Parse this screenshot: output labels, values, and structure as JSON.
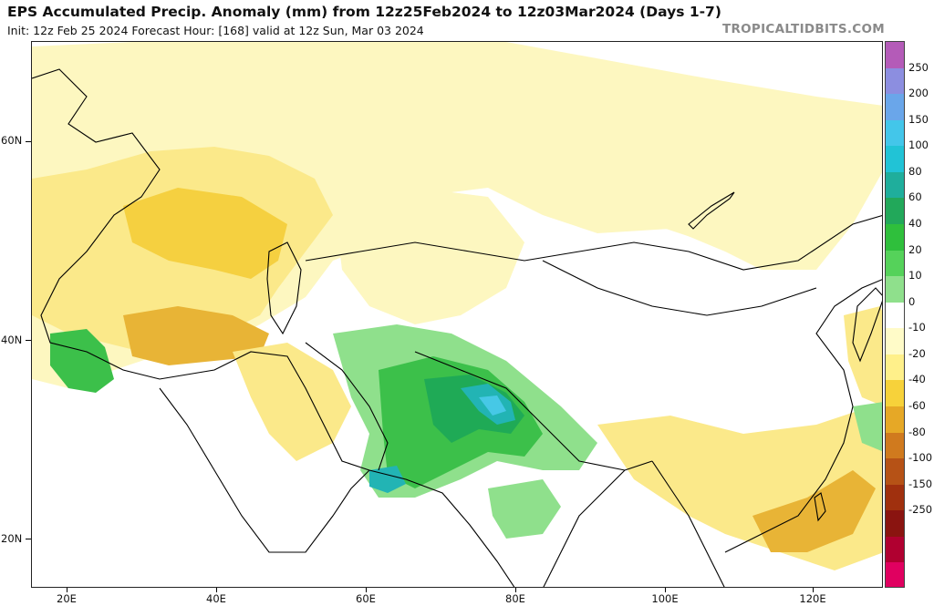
{
  "title": "EPS Accumulated Precip. Anomaly (mm) from 12z25Feb2024 to 12z03Mar2024 (Days 1-7)",
  "subtitle": "Init: 12z Feb 25 2024   Forecast Hour: [168]   valid at 12z Sun, Mar 03 2024",
  "brand": "TROPICALTIDBITS.COM",
  "lat_labels": [
    "60N",
    "40N",
    "20N"
  ],
  "lon_labels": [
    "20E",
    "40E",
    "60E",
    "80E",
    "100E",
    "120E"
  ],
  "colorbar": {
    "labels": [
      "250",
      "200",
      "150",
      "100",
      "80",
      "60",
      "40",
      "20",
      "10",
      "0",
      "-10",
      "-20",
      "-40",
      "-60",
      "-80",
      "-100",
      "-150",
      "-250"
    ],
    "colors": [
      "#b45bb8",
      "#8c8ee0",
      "#6aa6ea",
      "#43c6ea",
      "#21c3d6",
      "#1fae9c",
      "#22a85a",
      "#2fbf3c",
      "#55d25a",
      "#8fe08c",
      "#ffffff",
      "#fffbc8",
      "#fff08a",
      "#f7d23a",
      "#e6a826",
      "#d07a1e",
      "#b65216",
      "#a0300e",
      "#8a1410",
      "#b00030",
      "#e00060"
    ]
  },
  "map_colors": {
    "dry_light": "#fdf7c0",
    "dry_mid": "#fbe98a",
    "dry_strong": "#f5d040",
    "dry_orange": "#e8b436",
    "wet_light": "#8fe08c",
    "wet_mid": "#3cc04a",
    "wet_strong": "#1faa56",
    "wet_teal": "#22b4b4",
    "wet_cyan": "#46c8e6",
    "border": "#000000"
  }
}
